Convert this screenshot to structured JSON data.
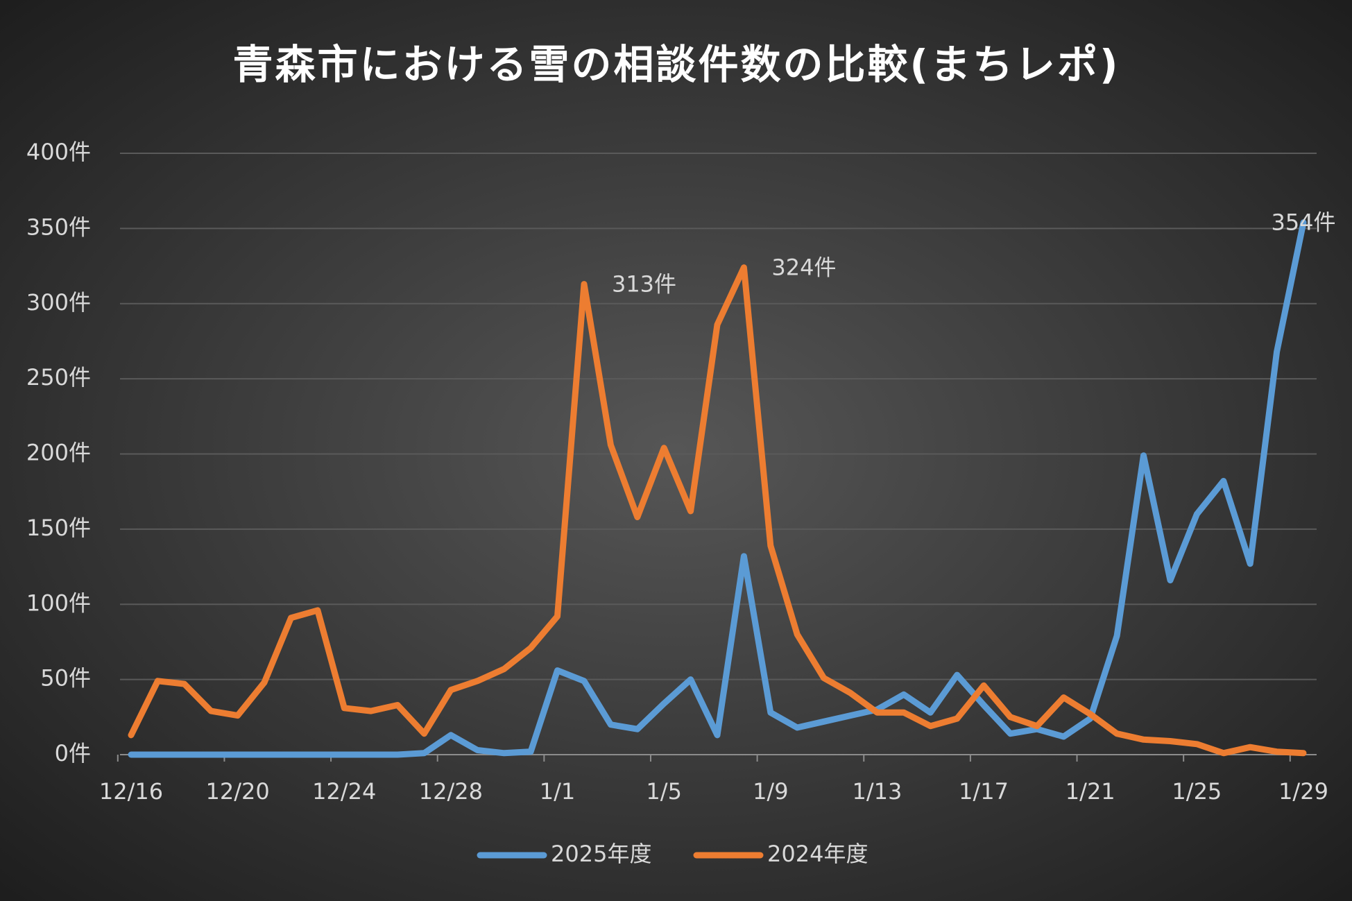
{
  "chart_data": {
    "type": "line",
    "title": "青森市における雪の相談件数の比較(まちレポ)",
    "categories": [
      "12/16",
      null,
      null,
      null,
      "12/20",
      null,
      null,
      null,
      "12/24",
      null,
      null,
      null,
      "12/28",
      null,
      null,
      null,
      "1/1",
      null,
      null,
      null,
      "1/5",
      null,
      null,
      null,
      "1/9",
      null,
      null,
      null,
      "1/13",
      null,
      null,
      null,
      "1/17",
      null,
      null,
      null,
      "1/21",
      null,
      null,
      null,
      "1/25",
      null,
      null,
      null,
      "1/29"
    ],
    "series": [
      {
        "name": "2025年度",
        "color": "#5b9bd5",
        "values": [
          0,
          0,
          0,
          0,
          0,
          0,
          0,
          0,
          0,
          0,
          0,
          1,
          13,
          3,
          1,
          2,
          56,
          49,
          20,
          17,
          34,
          50,
          13,
          132,
          28,
          18,
          22,
          26,
          30,
          40,
          28,
          53,
          33,
          14,
          17,
          12,
          24,
          79,
          199,
          116,
          160,
          182,
          127,
          268,
          354
        ],
        "value_labels": [
          null,
          null,
          null,
          null,
          null,
          null,
          null,
          null,
          null,
          null,
          null,
          null,
          null,
          null,
          null,
          null,
          null,
          null,
          null,
          null,
          null,
          null,
          null,
          null,
          null,
          null,
          null,
          null,
          null,
          null,
          null,
          null,
          null,
          null,
          null,
          null,
          null,
          null,
          null,
          null,
          null,
          null,
          null,
          null,
          "354件"
        ]
      },
      {
        "name": "2024年度",
        "color": "#ed7d31",
        "values": [
          13,
          49,
          47,
          29,
          26,
          48,
          91,
          96,
          31,
          29,
          33,
          14,
          43,
          49,
          57,
          71,
          92,
          313,
          206,
          158,
          204,
          162,
          286,
          324,
          139,
          80,
          51,
          41,
          28,
          28,
          19,
          24,
          46,
          25,
          19,
          38,
          27,
          14,
          10,
          9,
          7,
          1,
          5,
          2,
          1
        ],
        "value_labels": [
          null,
          null,
          null,
          null,
          null,
          null,
          null,
          null,
          null,
          null,
          null,
          null,
          null,
          null,
          null,
          null,
          null,
          "313件",
          null,
          null,
          null,
          null,
          null,
          "324件",
          null,
          null,
          null,
          null,
          null,
          null,
          null,
          null,
          null,
          null,
          null,
          null,
          null,
          null,
          null,
          null,
          null,
          null,
          null,
          null,
          null
        ]
      }
    ],
    "ylim": [
      0,
      400
    ],
    "yticks": [
      {
        "value": 0,
        "label": "0件"
      },
      {
        "value": 50,
        "label": "50件"
      },
      {
        "value": 100,
        "label": "100件"
      },
      {
        "value": 150,
        "label": "150件"
      },
      {
        "value": 200,
        "label": "200件"
      },
      {
        "value": 250,
        "label": "250件"
      },
      {
        "value": 300,
        "label": "300件"
      },
      {
        "value": 350,
        "label": "350件"
      },
      {
        "value": 400,
        "label": "400件"
      }
    ],
    "grid": true,
    "legend": "bottom"
  }
}
